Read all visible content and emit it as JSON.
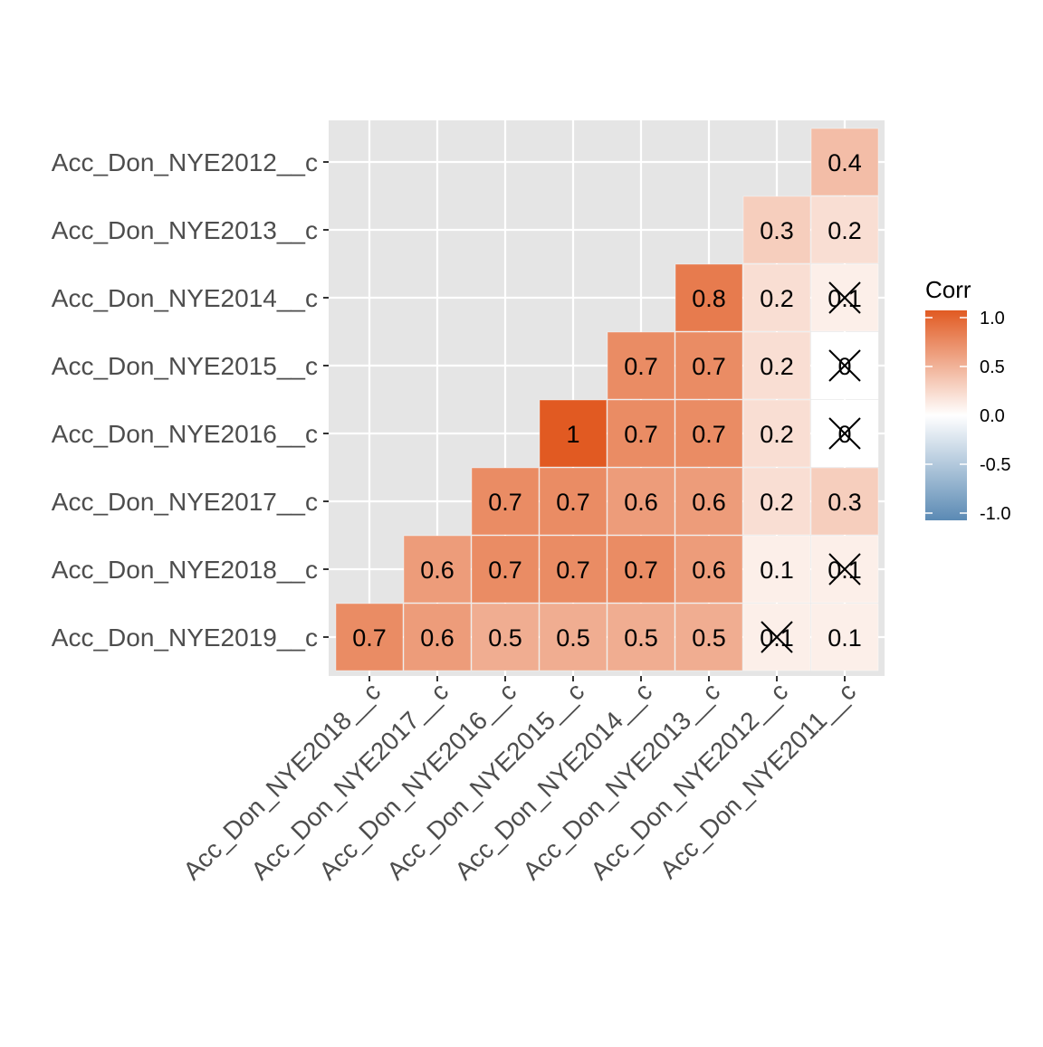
{
  "chart_data": {
    "type": "heatmap",
    "x_categories": [
      "Acc_Don_NYE2018__c",
      "Acc_Don_NYE2017__c",
      "Acc_Don_NYE2016__c",
      "Acc_Don_NYE2015__c",
      "Acc_Don_NYE2014__c",
      "Acc_Don_NYE2013__c",
      "Acc_Don_NYE2012__c",
      "Acc_Don_NYE2011__c"
    ],
    "y_categories": [
      "Acc_Don_NYE2012__c",
      "Acc_Don_NYE2013__c",
      "Acc_Don_NYE2014__c",
      "Acc_Don_NYE2015__c",
      "Acc_Don_NYE2016__c",
      "Acc_Don_NYE2017__c",
      "Acc_Don_NYE2018__c",
      "Acc_Don_NYE2019__c"
    ],
    "cells": [
      {
        "y": "Acc_Don_NYE2012__c",
        "x": "Acc_Don_NYE2011__c",
        "value": 0.4,
        "label": "0.4",
        "insignificant": false
      },
      {
        "y": "Acc_Don_NYE2013__c",
        "x": "Acc_Don_NYE2012__c",
        "value": 0.3,
        "label": "0.3",
        "insignificant": false
      },
      {
        "y": "Acc_Don_NYE2013__c",
        "x": "Acc_Don_NYE2011__c",
        "value": 0.2,
        "label": "0.2",
        "insignificant": false
      },
      {
        "y": "Acc_Don_NYE2014__c",
        "x": "Acc_Don_NYE2013__c",
        "value": 0.8,
        "label": "0.8",
        "insignificant": false
      },
      {
        "y": "Acc_Don_NYE2014__c",
        "x": "Acc_Don_NYE2012__c",
        "value": 0.2,
        "label": "0.2",
        "insignificant": false
      },
      {
        "y": "Acc_Don_NYE2014__c",
        "x": "Acc_Don_NYE2011__c",
        "value": 0.1,
        "label": "0.1",
        "insignificant": true
      },
      {
        "y": "Acc_Don_NYE2015__c",
        "x": "Acc_Don_NYE2014__c",
        "value": 0.7,
        "label": "0.7",
        "insignificant": false
      },
      {
        "y": "Acc_Don_NYE2015__c",
        "x": "Acc_Don_NYE2013__c",
        "value": 0.7,
        "label": "0.7",
        "insignificant": false
      },
      {
        "y": "Acc_Don_NYE2015__c",
        "x": "Acc_Don_NYE2012__c",
        "value": 0.2,
        "label": "0.2",
        "insignificant": false
      },
      {
        "y": "Acc_Don_NYE2015__c",
        "x": "Acc_Don_NYE2011__c",
        "value": 0.0,
        "label": "0",
        "insignificant": true
      },
      {
        "y": "Acc_Don_NYE2016__c",
        "x": "Acc_Don_NYE2015__c",
        "value": 1.0,
        "label": "1",
        "insignificant": false
      },
      {
        "y": "Acc_Don_NYE2016__c",
        "x": "Acc_Don_NYE2014__c",
        "value": 0.7,
        "label": "0.7",
        "insignificant": false
      },
      {
        "y": "Acc_Don_NYE2016__c",
        "x": "Acc_Don_NYE2013__c",
        "value": 0.7,
        "label": "0.7",
        "insignificant": false
      },
      {
        "y": "Acc_Don_NYE2016__c",
        "x": "Acc_Don_NYE2012__c",
        "value": 0.2,
        "label": "0.2",
        "insignificant": false
      },
      {
        "y": "Acc_Don_NYE2016__c",
        "x": "Acc_Don_NYE2011__c",
        "value": 0.0,
        "label": "0",
        "insignificant": true
      },
      {
        "y": "Acc_Don_NYE2017__c",
        "x": "Acc_Don_NYE2016__c",
        "value": 0.7,
        "label": "0.7",
        "insignificant": false
      },
      {
        "y": "Acc_Don_NYE2017__c",
        "x": "Acc_Don_NYE2015__c",
        "value": 0.7,
        "label": "0.7",
        "insignificant": false
      },
      {
        "y": "Acc_Don_NYE2017__c",
        "x": "Acc_Don_NYE2014__c",
        "value": 0.6,
        "label": "0.6",
        "insignificant": false
      },
      {
        "y": "Acc_Don_NYE2017__c",
        "x": "Acc_Don_NYE2013__c",
        "value": 0.6,
        "label": "0.6",
        "insignificant": false
      },
      {
        "y": "Acc_Don_NYE2017__c",
        "x": "Acc_Don_NYE2012__c",
        "value": 0.2,
        "label": "0.2",
        "insignificant": false
      },
      {
        "y": "Acc_Don_NYE2017__c",
        "x": "Acc_Don_NYE2011__c",
        "value": 0.3,
        "label": "0.3",
        "insignificant": false
      },
      {
        "y": "Acc_Don_NYE2018__c",
        "x": "Acc_Don_NYE2017__c",
        "value": 0.6,
        "label": "0.6",
        "insignificant": false
      },
      {
        "y": "Acc_Don_NYE2018__c",
        "x": "Acc_Don_NYE2016__c",
        "value": 0.7,
        "label": "0.7",
        "insignificant": false
      },
      {
        "y": "Acc_Don_NYE2018__c",
        "x": "Acc_Don_NYE2015__c",
        "value": 0.7,
        "label": "0.7",
        "insignificant": false
      },
      {
        "y": "Acc_Don_NYE2018__c",
        "x": "Acc_Don_NYE2014__c",
        "value": 0.7,
        "label": "0.7",
        "insignificant": false
      },
      {
        "y": "Acc_Don_NYE2018__c",
        "x": "Acc_Don_NYE2013__c",
        "value": 0.6,
        "label": "0.6",
        "insignificant": false
      },
      {
        "y": "Acc_Don_NYE2018__c",
        "x": "Acc_Don_NYE2012__c",
        "value": 0.1,
        "label": "0.1",
        "insignificant": false
      },
      {
        "y": "Acc_Don_NYE2018__c",
        "x": "Acc_Don_NYE2011__c",
        "value": 0.1,
        "label": "0.1",
        "insignificant": true
      },
      {
        "y": "Acc_Don_NYE2019__c",
        "x": "Acc_Don_NYE2018__c",
        "value": 0.7,
        "label": "0.7",
        "insignificant": false
      },
      {
        "y": "Acc_Don_NYE2019__c",
        "x": "Acc_Don_NYE2017__c",
        "value": 0.6,
        "label": "0.6",
        "insignificant": false
      },
      {
        "y": "Acc_Don_NYE2019__c",
        "x": "Acc_Don_NYE2016__c",
        "value": 0.5,
        "label": "0.5",
        "insignificant": false
      },
      {
        "y": "Acc_Don_NYE2019__c",
        "x": "Acc_Don_NYE2015__c",
        "value": 0.5,
        "label": "0.5",
        "insignificant": false
      },
      {
        "y": "Acc_Don_NYE2019__c",
        "x": "Acc_Don_NYE2014__c",
        "value": 0.5,
        "label": "0.5",
        "insignificant": false
      },
      {
        "y": "Acc_Don_NYE2019__c",
        "x": "Acc_Don_NYE2013__c",
        "value": 0.5,
        "label": "0.5",
        "insignificant": false
      },
      {
        "y": "Acc_Don_NYE2019__c",
        "x": "Acc_Don_NYE2012__c",
        "value": 0.1,
        "label": "0.1",
        "insignificant": true
      },
      {
        "y": "Acc_Don_NYE2019__c",
        "x": "Acc_Don_NYE2011__c",
        "value": 0.1,
        "label": "0.1",
        "insignificant": false
      }
    ],
    "legend": {
      "title": "Corr",
      "range": [
        -1,
        1
      ],
      "ticks": [
        {
          "value": 1.0,
          "label": "1.0"
        },
        {
          "value": 0.5,
          "label": "0.5"
        },
        {
          "value": 0.0,
          "label": "0.0"
        },
        {
          "value": -0.5,
          "label": "-0.5"
        },
        {
          "value": -1.0,
          "label": "-1.0"
        }
      ],
      "placement": "right"
    },
    "colors": {
      "high": "#E15A22",
      "mid": "#FFFFFF",
      "low": "#5B8AB4",
      "panel_background": "#E5E5E5",
      "grid": "#FFFFFF",
      "axis_text": "#4D4D4D"
    },
    "grid": true
  }
}
